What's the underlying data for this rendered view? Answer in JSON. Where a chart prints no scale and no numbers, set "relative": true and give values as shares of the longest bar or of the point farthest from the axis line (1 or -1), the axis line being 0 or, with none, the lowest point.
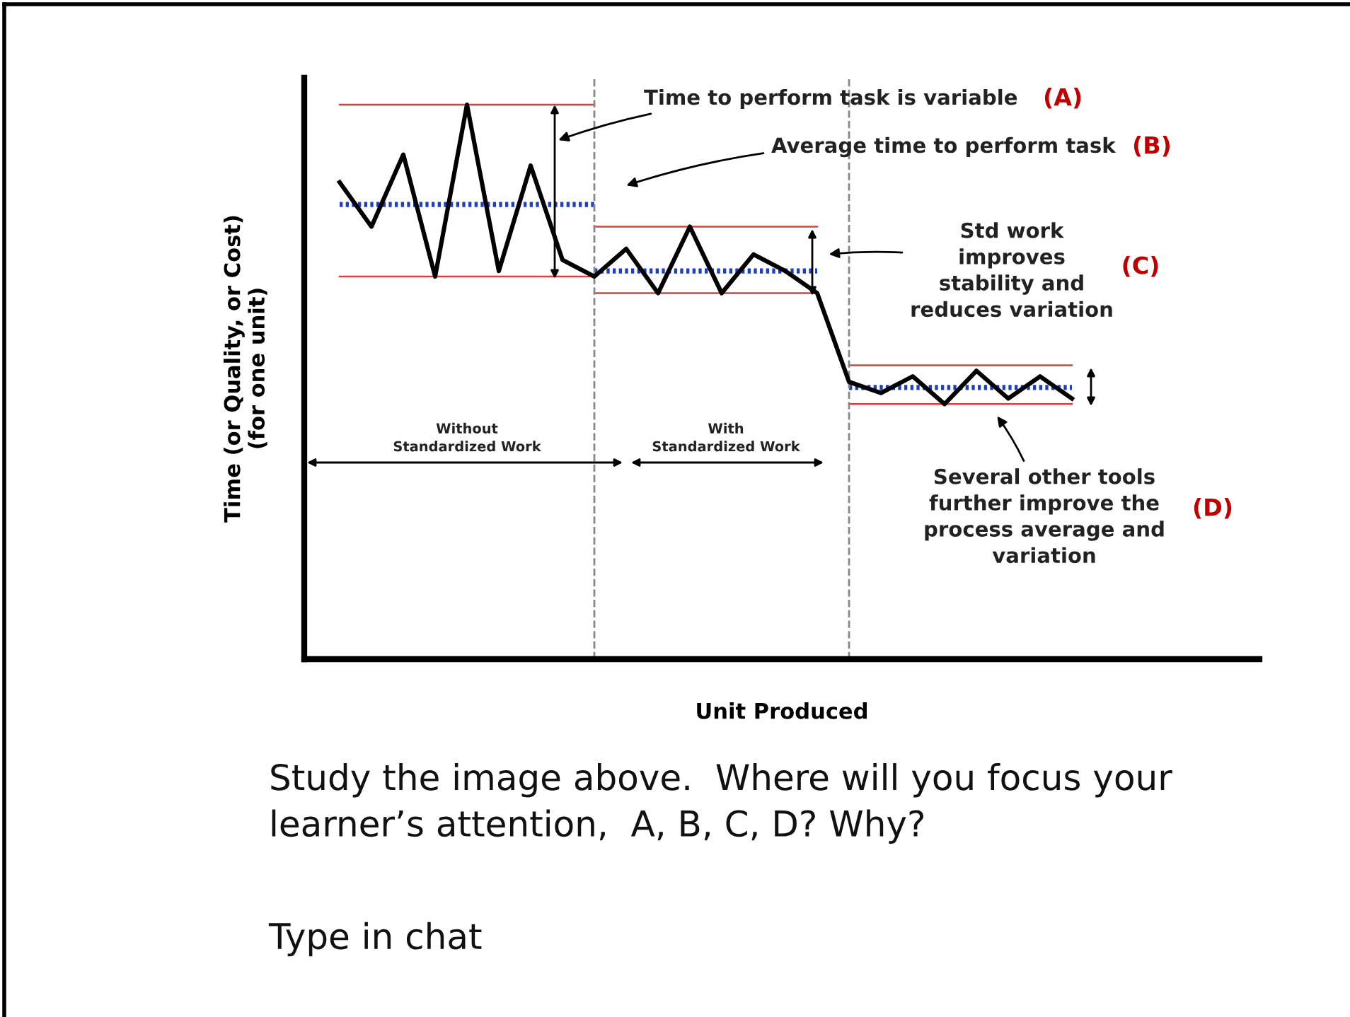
{
  "chart_data": {
    "type": "line",
    "relative": true,
    "xlabel": "Unit Produced",
    "ylabel": "Time (or Quality, or Cost)\n(for one unit)",
    "categories": [
      null,
      null,
      null,
      null,
      null,
      null,
      null,
      null,
      null,
      null,
      null,
      null,
      null,
      null,
      null,
      null,
      null,
      null,
      null,
      null,
      null,
      null,
      null,
      null
    ],
    "series": [
      {
        "color": "#000000",
        "values": [
          0.86,
          0.78,
          0.91,
          0.69,
          1,
          0.7,
          0.89,
          0.72,
          0.69,
          0.74,
          0.66,
          0.78,
          0.66,
          0.73,
          0.7,
          0.66,
          0.5,
          0.48,
          0.51,
          0.46,
          0.52,
          0.47,
          0.51,
          0.47
        ]
      },
      {
        "color": "#e03c3c",
        "values": [
          1,
          1,
          1,
          1,
          1,
          1,
          1,
          1,
          1,
          null,
          null,
          null,
          null,
          null,
          null,
          null,
          null,
          null,
          null,
          null,
          null,
          null,
          null,
          null
        ]
      },
      {
        "color": "#e03c3c",
        "values": [
          0.69,
          0.69,
          0.69,
          0.69,
          0.69,
          0.69,
          0.69,
          0.69,
          0.69,
          null,
          null,
          null,
          null,
          null,
          null,
          null,
          null,
          null,
          null,
          null,
          null,
          null,
          null,
          null
        ]
      },
      {
        "color": "#e03c3c",
        "values": [
          null,
          null,
          null,
          null,
          null,
          null,
          null,
          null,
          0.78,
          0.78,
          0.78,
          0.78,
          0.78,
          0.78,
          0.78,
          0.78,
          null,
          null,
          null,
          null,
          null,
          null,
          null,
          null
        ]
      },
      {
        "color": "#e03c3c",
        "values": [
          null,
          null,
          null,
          null,
          null,
          null,
          null,
          null,
          0.66,
          0.66,
          0.66,
          0.66,
          0.66,
          0.66,
          0.66,
          0.66,
          null,
          null,
          null,
          null,
          null,
          null,
          null,
          null
        ]
      },
      {
        "color": "#e03c3c",
        "values": [
          null,
          null,
          null,
          null,
          null,
          null,
          null,
          null,
          null,
          null,
          null,
          null,
          null,
          null,
          null,
          null,
          0.53,
          0.53,
          0.53,
          0.53,
          0.53,
          0.53,
          0.53,
          0.53
        ]
      },
      {
        "color": "#e03c3c",
        "values": [
          null,
          null,
          null,
          null,
          null,
          null,
          null,
          null,
          null,
          null,
          null,
          null,
          null,
          null,
          null,
          null,
          0.46,
          0.46,
          0.46,
          0.46,
          0.46,
          0.46,
          0.46,
          0.46
        ]
      },
      {
        "color": "#1f3fc0",
        "line_style": "dotted",
        "values": [
          0.82,
          0.82,
          0.82,
          0.82,
          0.82,
          0.82,
          0.82,
          0.82,
          0.82,
          null,
          null,
          null,
          null,
          null,
          null,
          null,
          null,
          null,
          null,
          null,
          null,
          null,
          null,
          null
        ]
      },
      {
        "color": "#1f3fc0",
        "line_style": "dotted",
        "values": [
          null,
          null,
          null,
          null,
          null,
          null,
          null,
          null,
          0.7,
          0.7,
          0.7,
          0.7,
          0.7,
          0.7,
          0.7,
          0.7,
          null,
          null,
          null,
          null,
          null,
          null,
          null,
          null
        ]
      },
      {
        "color": "#1f3fc0",
        "line_style": "dotted",
        "values": [
          null,
          null,
          null,
          null,
          null,
          null,
          null,
          null,
          null,
          null,
          null,
          null,
          null,
          null,
          null,
          null,
          0.49,
          0.49,
          0.49,
          0.49,
          0.49,
          0.49,
          0.49,
          0.49
        ]
      }
    ],
    "annotations": [
      "Time to perform task is variable",
      "(A)",
      "Average time to perform task",
      "(B)",
      "Std work\nimproves\nstability and\nreduces variation",
      "(C)",
      "Without\nStandardized Work",
      "With\nStandardized Work",
      "Several other tools\nfurther improve the\nprocess average and\nvariation",
      "(D)",
      "Study the image above.  Where will you focus your\nlearner’s attention,  A, B, C, D? Why?",
      "Type in chat"
    ]
  }
}
